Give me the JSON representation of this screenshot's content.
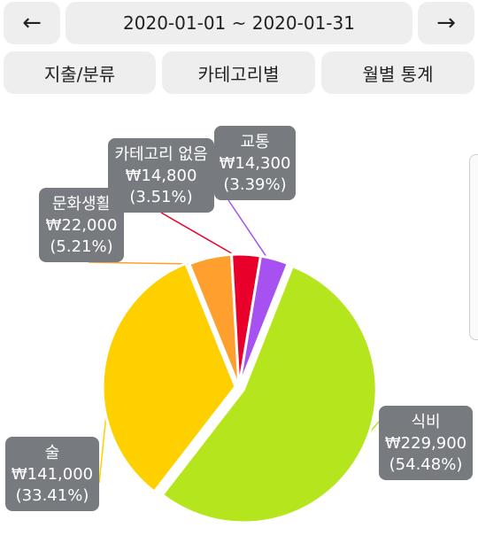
{
  "header": {
    "prev_arrow": "←",
    "date_range": "2020-01-01 ~ 2020-01-31",
    "next_arrow": "→"
  },
  "tabs": [
    {
      "label": "지출/분류"
    },
    {
      "label": "카테고리별"
    },
    {
      "label": "월별 통계"
    }
  ],
  "chart_data": {
    "type": "pie",
    "title": "",
    "currency_symbol": "₩",
    "series": [
      {
        "label": "식비",
        "value": 229900,
        "amount_text": "₩229,900",
        "percent_text": "(54.48%)",
        "color": "#b5e61d"
      },
      {
        "label": "술",
        "value": 141000,
        "amount_text": "₩141,000",
        "percent_text": "(33.41%)",
        "color": "#ffd000"
      },
      {
        "label": "문화생활",
        "value": 22000,
        "amount_text": "₩22,000",
        "percent_text": "(5.21%)",
        "color": "#ff9f2e"
      },
      {
        "label": "카테고리 없음",
        "value": 14800,
        "amount_text": "₩14,800",
        "percent_text": "(3.51%)",
        "color": "#e8002a"
      },
      {
        "label": "교통",
        "value": 14300,
        "amount_text": "₩14,300",
        "percent_text": "(3.39%)",
        "color": "#a752f0"
      }
    ],
    "legend": "callouts"
  }
}
